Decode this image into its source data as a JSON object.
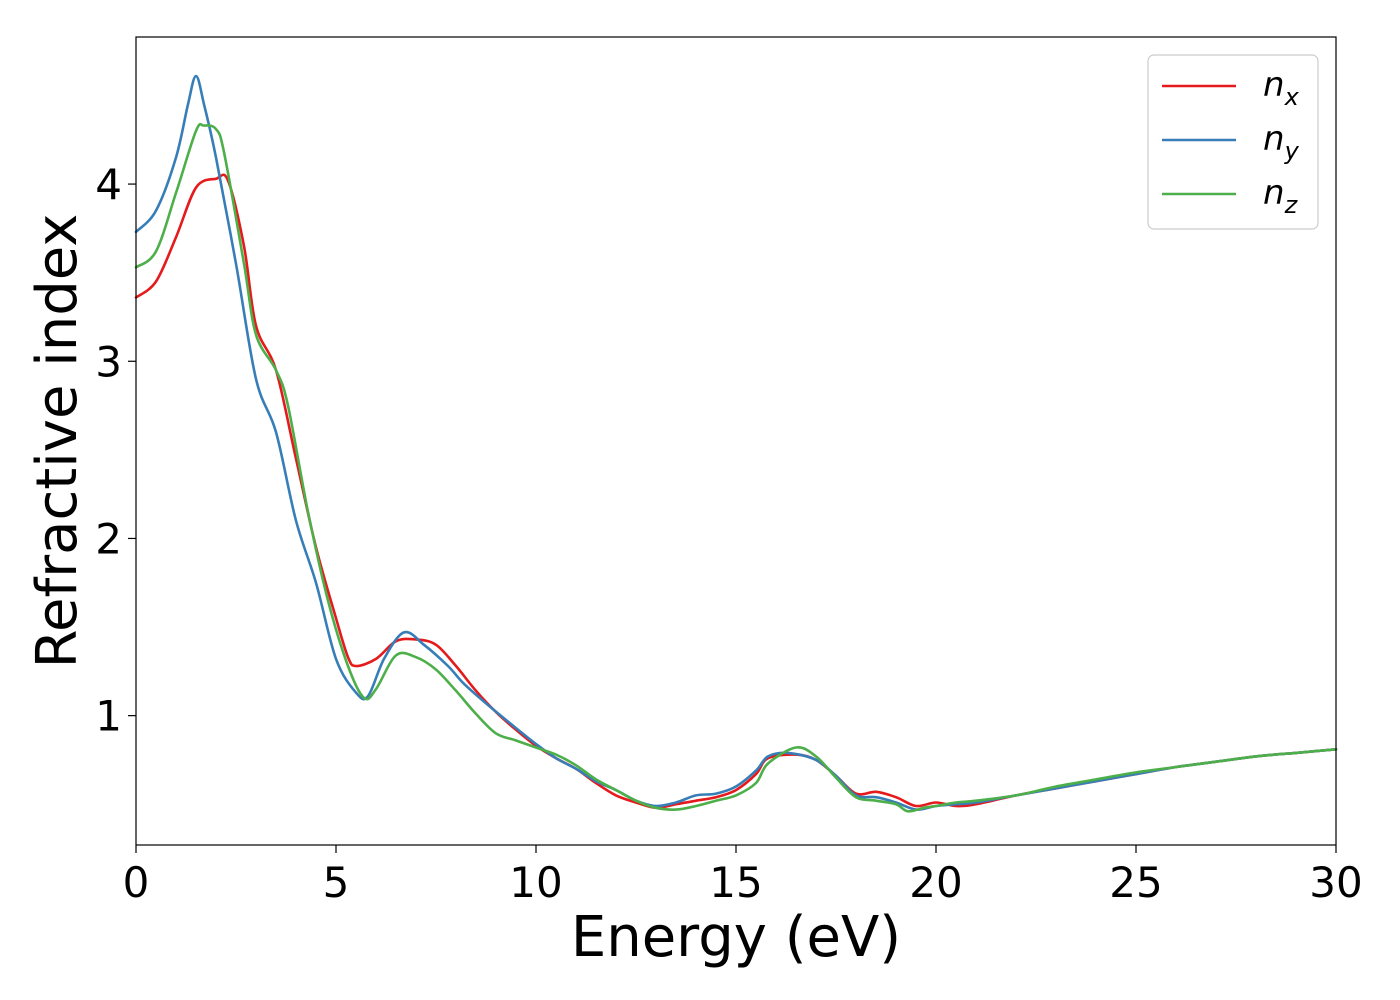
{
  "chart_data": {
    "type": "line",
    "xlabel": "Energy (eV)",
    "ylabel": "Refractive index",
    "xlim": [
      0,
      30
    ],
    "ylim": [
      0.27,
      4.83
    ],
    "xticks": [
      0,
      5,
      10,
      15,
      20,
      25,
      30
    ],
    "xtick_labels": [
      "0",
      "5",
      "10",
      "15",
      "20",
      "25",
      "30"
    ],
    "yticks": [
      1,
      2,
      3,
      4
    ],
    "ytick_labels": [
      "1",
      "2",
      "3",
      "4"
    ],
    "grid": false,
    "legend_position": "top-right",
    "series": [
      {
        "name": "n",
        "subscript": "x",
        "color": "#e41a1c",
        "x": [
          0,
          0.5,
          1,
          1.5,
          2,
          2.3,
          2.7,
          3,
          3.5,
          4,
          4.5,
          5,
          5.3,
          5.5,
          6,
          6.5,
          7,
          7.5,
          8,
          8.5,
          9,
          9.5,
          10,
          10.5,
          11,
          11.5,
          12,
          12.5,
          13,
          13.5,
          14,
          14.5,
          15,
          15.5,
          15.8,
          16.5,
          17,
          17.5,
          18,
          18.5,
          19,
          19.5,
          20,
          20.5,
          21,
          22,
          23,
          24,
          25,
          26,
          27,
          28,
          29,
          30
        ],
        "y": [
          3.36,
          3.45,
          3.7,
          3.98,
          4.03,
          4.02,
          3.65,
          3.2,
          2.95,
          2.45,
          1.95,
          1.55,
          1.33,
          1.28,
          1.32,
          1.42,
          1.43,
          1.4,
          1.28,
          1.14,
          1.02,
          0.92,
          0.83,
          0.76,
          0.7,
          0.62,
          0.55,
          0.51,
          0.48,
          0.5,
          0.52,
          0.54,
          0.58,
          0.67,
          0.76,
          0.78,
          0.75,
          0.66,
          0.56,
          0.57,
          0.54,
          0.49,
          0.51,
          0.49,
          0.5,
          0.55,
          0.59,
          0.63,
          0.67,
          0.71,
          0.74,
          0.77,
          0.79,
          0.81
        ]
      },
      {
        "name": "n",
        "subscript": "y",
        "color": "#377eb8",
        "x": [
          0,
          0.5,
          1,
          1.3,
          1.5,
          1.7,
          2,
          2.5,
          3,
          3.5,
          4,
          4.5,
          5,
          5.5,
          5.8,
          6.2,
          6.7,
          7.2,
          7.8,
          8.2,
          8.8,
          9.5,
          10,
          10.5,
          11,
          11.5,
          12,
          12.5,
          13,
          13.5,
          14,
          14.5,
          15,
          15.5,
          15.8,
          16.3,
          17,
          17.5,
          18,
          18.5,
          19,
          19.5,
          20,
          20.5,
          21,
          22,
          23,
          24,
          25,
          26,
          27,
          28,
          29,
          30
        ],
        "y": [
          3.73,
          3.85,
          4.15,
          4.45,
          4.61,
          4.45,
          4.15,
          3.55,
          2.9,
          2.6,
          2.1,
          1.75,
          1.32,
          1.13,
          1.11,
          1.32,
          1.47,
          1.4,
          1.28,
          1.18,
          1.06,
          0.93,
          0.84,
          0.76,
          0.7,
          0.63,
          0.58,
          0.52,
          0.49,
          0.51,
          0.55,
          0.56,
          0.6,
          0.69,
          0.77,
          0.79,
          0.75,
          0.66,
          0.55,
          0.54,
          0.51,
          0.47,
          0.49,
          0.5,
          0.51,
          0.55,
          0.59,
          0.63,
          0.67,
          0.71,
          0.74,
          0.77,
          0.79,
          0.81
        ]
      },
      {
        "name": "n",
        "subscript": "z",
        "color": "#4daf4a",
        "x": [
          0,
          0.5,
          1,
          1.5,
          1.7,
          2,
          2.2,
          2.7,
          3,
          3.5,
          3.8,
          4.3,
          4.8,
          5.3,
          5.7,
          6,
          6.5,
          7,
          7.5,
          8,
          8.5,
          9,
          9.5,
          10,
          10.5,
          11,
          11.5,
          12,
          12.5,
          13,
          13.5,
          14,
          14.5,
          15,
          15.5,
          15.8,
          16.5,
          17,
          17.5,
          18,
          18.5,
          19,
          19.3,
          19.7,
          20,
          20.5,
          21,
          22,
          23,
          24,
          25,
          26,
          27,
          28,
          29,
          30
        ],
        "y": [
          3.53,
          3.62,
          3.95,
          4.3,
          4.33,
          4.31,
          4.18,
          3.55,
          3.15,
          2.95,
          2.75,
          2.15,
          1.65,
          1.28,
          1.1,
          1.15,
          1.34,
          1.33,
          1.26,
          1.14,
          1.01,
          0.9,
          0.86,
          0.82,
          0.78,
          0.72,
          0.64,
          0.58,
          0.52,
          0.48,
          0.47,
          0.49,
          0.52,
          0.55,
          0.62,
          0.73,
          0.82,
          0.77,
          0.65,
          0.54,
          0.52,
          0.5,
          0.46,
          0.48,
          0.49,
          0.51,
          0.52,
          0.55,
          0.6,
          0.64,
          0.68,
          0.71,
          0.74,
          0.77,
          0.79,
          0.81
        ]
      }
    ]
  }
}
